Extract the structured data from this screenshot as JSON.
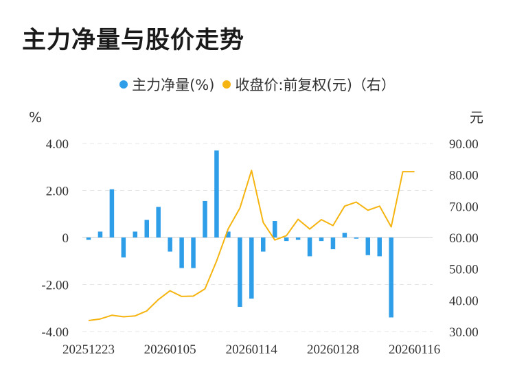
{
  "title": "主力净量与股价走势",
  "legend": {
    "net_label": "主力净量(%)",
    "price_label": "收盘价:前复权(元)（右）",
    "net_color": "#2f9ee9",
    "price_color": "#f5b40f"
  },
  "chart_data": {
    "type": "bar+line",
    "title": "主力净量与股价走势",
    "y_left_label": "%",
    "y_right_label": "元",
    "y_left_ticks": [
      "4.00",
      "2.00",
      "0",
      "-2.00",
      "-4.00"
    ],
    "y_right_ticks": [
      "90.00",
      "80.00",
      "70.00",
      "60.00",
      "50.00",
      "40.00",
      "30.00"
    ],
    "y_left_range": [
      -4,
      4
    ],
    "y_right_range": [
      30,
      90
    ],
    "x_tick_labels": [
      "20251223",
      "20260105",
      "20260114",
      "20260128",
      "20260116"
    ],
    "x_tick_indices": [
      0,
      7,
      14,
      21,
      28
    ],
    "grid": "horizontal-dashed",
    "series": [
      {
        "name": "主力净量(%)",
        "type": "bar",
        "values": [
          -0.1,
          0.25,
          2.05,
          -0.85,
          0.25,
          0.75,
          1.3,
          -0.6,
          -1.3,
          -1.3,
          1.55,
          3.7,
          0.25,
          -2.95,
          -2.6,
          -0.6,
          0.7,
          -0.15,
          -0.1,
          -0.8,
          -0.15,
          -0.5,
          0.2,
          -0.05,
          -0.75,
          -0.8,
          -3.4,
          0,
          0
        ]
      },
      {
        "name": "收盘价:前复权(元)（右）",
        "type": "line",
        "values": [
          33.5,
          34.0,
          35.2,
          34.7,
          35.0,
          36.6,
          40.2,
          43.0,
          41.2,
          41.3,
          43.6,
          52.5,
          62.8,
          69.4,
          81.4,
          64.8,
          59.2,
          60.6,
          65.8,
          62.7,
          65.7,
          63.8,
          70.0,
          71.3,
          68.7,
          70.0,
          63.4,
          81.0,
          81.0
        ]
      }
    ]
  }
}
